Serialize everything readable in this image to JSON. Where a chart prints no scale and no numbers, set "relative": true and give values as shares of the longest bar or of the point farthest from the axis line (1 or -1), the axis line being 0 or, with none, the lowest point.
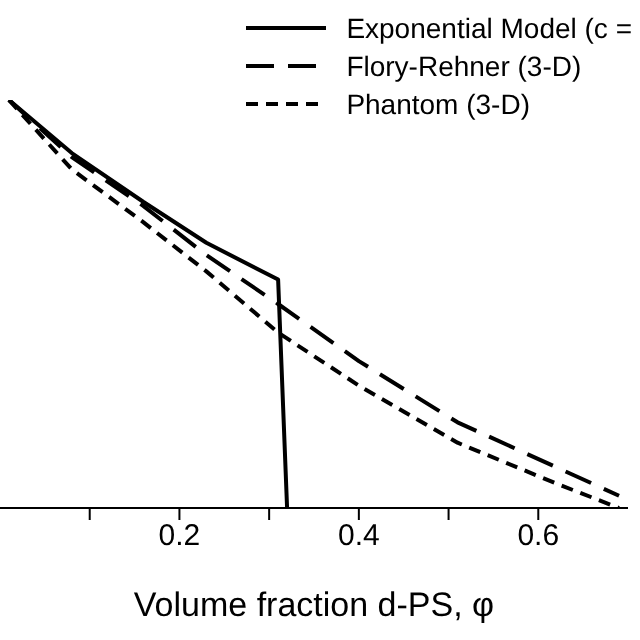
{
  "chart_data": {
    "type": "line",
    "relative": true,
    "xlabel": "Volume fraction d-PS, φ",
    "xlim": [
      0,
      0.7
    ],
    "xticks": [
      {
        "value": 0.1,
        "label": null
      },
      0.2,
      {
        "value": 0.3,
        "label": null
      },
      0.4,
      {
        "value": 0.5,
        "label": null
      },
      0.6
    ],
    "legend": "top right",
    "marker": "none",
    "series": [
      {
        "name": "Exponential Model (c =",
        "color": "#000000",
        "line_style": "solid",
        "x": [
          0.01,
          0.08,
          0.16,
          0.23,
          0.31,
          0.32
        ],
        "values": [
          1.0,
          0.87,
          0.75,
          0.65,
          0.56,
          0
        ]
      },
      {
        "name": "Flory-Rehner (3-D)",
        "color": "#000000",
        "line_style": "dashed",
        "x": [
          0.01,
          0.08,
          0.16,
          0.23,
          0.31,
          0.4,
          0.51,
          0.62,
          0.69
        ],
        "values": [
          1.0,
          0.86,
          0.74,
          0.62,
          0.5,
          0.36,
          0.21,
          0.1,
          0.03
        ]
      },
      {
        "name": "Phantom (3-D)",
        "color": "#000000",
        "line_style": "dotted",
        "x": [
          0.01,
          0.08,
          0.16,
          0.23,
          0.31,
          0.4,
          0.51,
          0.62,
          0.69
        ],
        "values": [
          1.0,
          0.83,
          0.7,
          0.58,
          0.43,
          0.3,
          0.16,
          0.06,
          0
        ]
      }
    ]
  }
}
